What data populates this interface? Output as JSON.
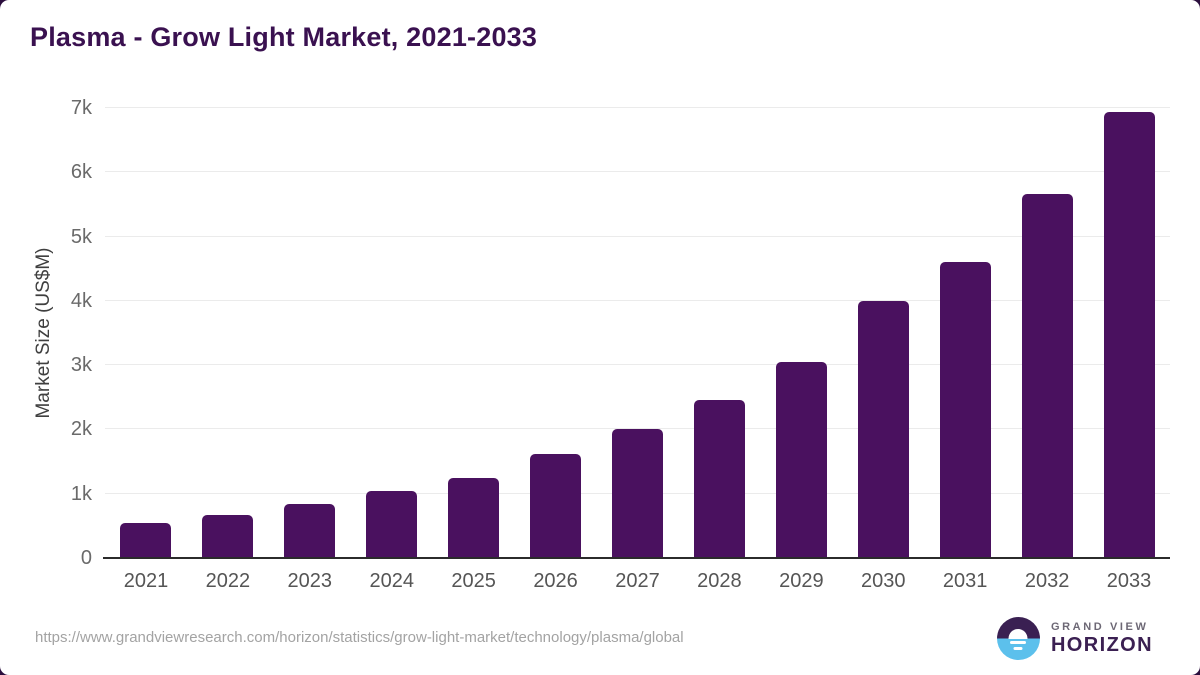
{
  "title": "Plasma - Grow Light Market, 2021-2033",
  "chart_data": {
    "type": "bar",
    "title": "Plasma - Grow Light Market, 2021-2033",
    "xlabel": "",
    "ylabel": "Market Size (US$M)",
    "categories": [
      "2021",
      "2022",
      "2023",
      "2024",
      "2025",
      "2026",
      "2027",
      "2028",
      "2029",
      "2030",
      "2031",
      "2032",
      "2033"
    ],
    "values": [
      545,
      670,
      845,
      1035,
      1245,
      1620,
      2010,
      2455,
      3045,
      4005,
      4600,
      5660,
      6940
    ],
    "ylim": [
      0,
      7000
    ],
    "yticks": [
      0,
      1000,
      2000,
      3000,
      4000,
      5000,
      6000,
      7000
    ],
    "ytick_labels": [
      "0",
      "1k",
      "2k",
      "3k",
      "4k",
      "5k",
      "6k",
      "7k"
    ],
    "grid": true,
    "legend": false,
    "bar_color": "#4a115f"
  },
  "footer": {
    "source_url": "https://www.grandviewresearch.com/horizon/statistics/grow-light-market/technology/plasma/global",
    "logo": {
      "line1": "GRAND VIEW",
      "line2": "HORIZON"
    }
  },
  "colors": {
    "title_text": "#3a1150",
    "bar": "#4a115f",
    "axis_text": "#555555",
    "ytick_text": "#6a6a6a",
    "gridline": "#ebebeb",
    "axis_line": "#2b2b2b",
    "url_text": "#a3a3a3",
    "logo_purple": "#3a2052",
    "logo_blue": "#5cc0ec",
    "backdrop": "#2b0e3d"
  }
}
